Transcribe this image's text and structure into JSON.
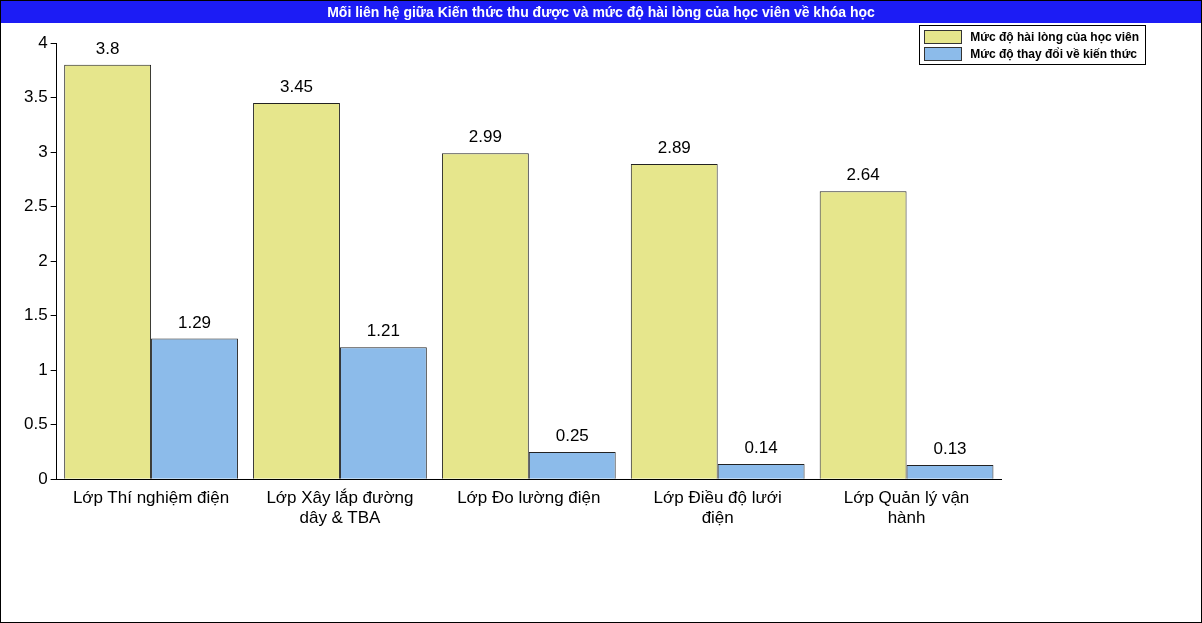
{
  "chart_data": {
    "type": "bar",
    "title": "Mối liên hệ giữa Kiến thức thu được và mức độ hài lòng của học viên về khóa học",
    "categories": [
      "Lớp Thí nghiệm điện",
      "Lớp Xây lắp đường dây & TBA",
      "Lớp Đo lường điện",
      "Lớp Điều độ lưới điện",
      "Lớp Quản lý vận hành"
    ],
    "series": [
      {
        "name": "Mức độ hài lòng của học viên",
        "color": "#e6e68c",
        "values": [
          3.8,
          3.45,
          2.99,
          2.89,
          2.64
        ]
      },
      {
        "name": "Mức độ thay đổi về kiến thức",
        "color": "#8cbbea",
        "values": [
          1.29,
          1.21,
          0.25,
          0.14,
          0.13
        ]
      }
    ],
    "ylim": [
      0,
      4
    ],
    "yticks": [
      0,
      0.5,
      1,
      1.5,
      2,
      2.5,
      3,
      3.5,
      4
    ],
    "grid": false,
    "legend": "top right",
    "data_labels": true
  }
}
